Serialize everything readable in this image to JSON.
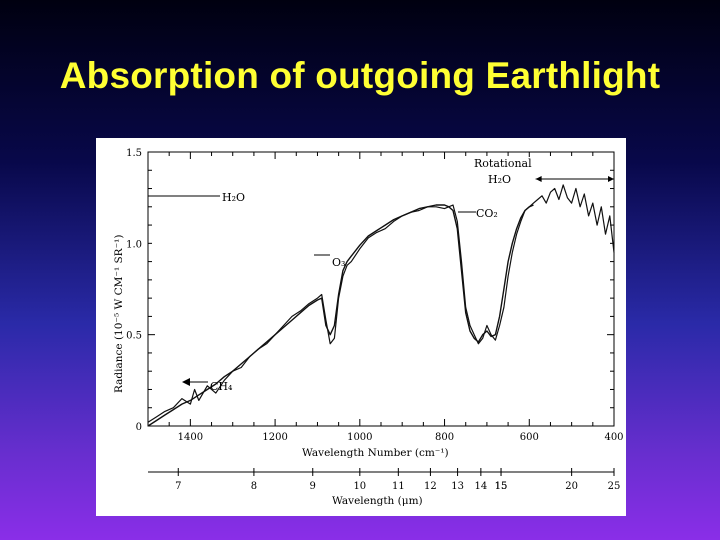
{
  "slide": {
    "title": "Absorption of outgoing Earthlight"
  },
  "chart_data": {
    "type": "line",
    "ylabel": "Radiance (10⁻⁵ W CM⁻¹ SR⁻¹)",
    "xlabel": "Wavelength Number (cm⁻¹)",
    "x2label": "Wavelength (μm)",
    "xlim": [
      1500,
      400
    ],
    "ylim": [
      0,
      1.5
    ],
    "y_ticks": [
      {
        "value": 0,
        "label": "0"
      },
      {
        "value": 0.5,
        "label": "0.5"
      },
      {
        "value": 1.0,
        "label": "1.0"
      },
      {
        "value": 1.5,
        "label": "1.5"
      }
    ],
    "x_ticks": [
      {
        "value": 1400,
        "label": "1400"
      },
      {
        "value": 1200,
        "label": "1200"
      },
      {
        "value": 1000,
        "label": "1000"
      },
      {
        "value": 800,
        "label": "800"
      },
      {
        "value": 600,
        "label": "600"
      },
      {
        "value": 400,
        "label": "400"
      }
    ],
    "wavelength_ticks": [
      {
        "value": 7,
        "label": "7"
      },
      {
        "value": 8,
        "label": "8"
      },
      {
        "value": 9,
        "label": "9"
      },
      {
        "value": 10,
        "label": "10"
      },
      {
        "value": 11,
        "label": "11"
      },
      {
        "value": 12,
        "label": "12"
      },
      {
        "value": 13,
        "label": "13"
      },
      {
        "value": 14,
        "label": "14"
      },
      {
        "value": 15,
        "label": "15"
      },
      {
        "value": 15,
        "label": "15"
      },
      {
        "value": 20,
        "label": "20"
      },
      {
        "value": 25,
        "label": "25"
      }
    ],
    "annotations": [
      {
        "label": "H₂O",
        "x_range": [
          1500,
          1270
        ]
      },
      {
        "label": "O₃",
        "x": 1040
      },
      {
        "label": "CO₂",
        "x": 700
      },
      {
        "label": "Rotational H₂O",
        "x_range": [
          585,
          400
        ]
      },
      {
        "label": "CH₄",
        "x": 1310
      }
    ],
    "series": [
      {
        "x": [
          1500,
          1480,
          1460,
          1440,
          1420,
          1400,
          1390,
          1380,
          1360,
          1340,
          1320,
          1300,
          1280,
          1260,
          1240,
          1220,
          1200,
          1180,
          1160,
          1140,
          1120,
          1100,
          1090,
          1080,
          1070,
          1060,
          1050,
          1040,
          1030,
          1020,
          1000,
          980,
          960,
          940,
          920,
          900,
          880,
          860,
          840,
          820,
          800,
          790,
          780,
          770,
          760,
          750,
          740,
          730,
          720,
          710,
          700,
          690,
          680,
          670,
          660,
          650,
          640,
          630,
          620,
          610,
          600,
          590,
          580,
          570,
          560,
          550,
          540,
          530,
          520,
          510,
          500,
          490,
          480,
          470,
          460,
          450,
          440,
          430,
          420,
          410,
          400
        ],
        "values": [
          0.02,
          0.05,
          0.08,
          0.1,
          0.15,
          0.12,
          0.2,
          0.14,
          0.22,
          0.18,
          0.25,
          0.3,
          0.32,
          0.38,
          0.42,
          0.45,
          0.5,
          0.55,
          0.6,
          0.63,
          0.67,
          0.7,
          0.72,
          0.58,
          0.45,
          0.48,
          0.7,
          0.82,
          0.88,
          0.9,
          0.97,
          1.03,
          1.06,
          1.08,
          1.12,
          1.15,
          1.17,
          1.18,
          1.2,
          1.2,
          1.19,
          1.2,
          1.21,
          1.12,
          0.9,
          0.65,
          0.55,
          0.5,
          0.45,
          0.48,
          0.55,
          0.5,
          0.47,
          0.55,
          0.65,
          0.82,
          0.95,
          1.05,
          1.12,
          1.18,
          1.2,
          1.22,
          1.24,
          1.26,
          1.22,
          1.28,
          1.3,
          1.24,
          1.32,
          1.25,
          1.22,
          1.3,
          1.2,
          1.27,
          1.15,
          1.22,
          1.1,
          1.2,
          1.05,
          1.15,
          0.95
        ]
      },
      {
        "x": [
          1500,
          1480,
          1460,
          1440,
          1420,
          1400,
          1380,
          1360,
          1340,
          1320,
          1300,
          1280,
          1260,
          1240,
          1220,
          1200,
          1180,
          1160,
          1140,
          1120,
          1100,
          1090,
          1080,
          1070,
          1060,
          1050,
          1040,
          1030,
          1020,
          1000,
          980,
          960,
          940,
          920,
          900,
          880,
          860,
          840,
          820,
          800,
          790,
          780,
          770,
          760,
          750,
          740,
          730,
          720,
          710,
          700,
          690,
          680,
          670,
          660,
          650,
          640,
          630,
          620,
          610,
          600,
          590
        ],
        "values": [
          0.0,
          0.03,
          0.06,
          0.09,
          0.12,
          0.14,
          0.17,
          0.2,
          0.23,
          0.27,
          0.3,
          0.34,
          0.38,
          0.42,
          0.46,
          0.5,
          0.54,
          0.58,
          0.62,
          0.66,
          0.69,
          0.7,
          0.55,
          0.5,
          0.55,
          0.72,
          0.85,
          0.9,
          0.93,
          0.99,
          1.04,
          1.07,
          1.1,
          1.13,
          1.15,
          1.17,
          1.19,
          1.2,
          1.21,
          1.21,
          1.2,
          1.18,
          1.08,
          0.85,
          0.62,
          0.52,
          0.48,
          0.46,
          0.5,
          0.52,
          0.49,
          0.5,
          0.6,
          0.75,
          0.9,
          1.0,
          1.08,
          1.14,
          1.18,
          1.2,
          1.21
        ]
      }
    ]
  }
}
